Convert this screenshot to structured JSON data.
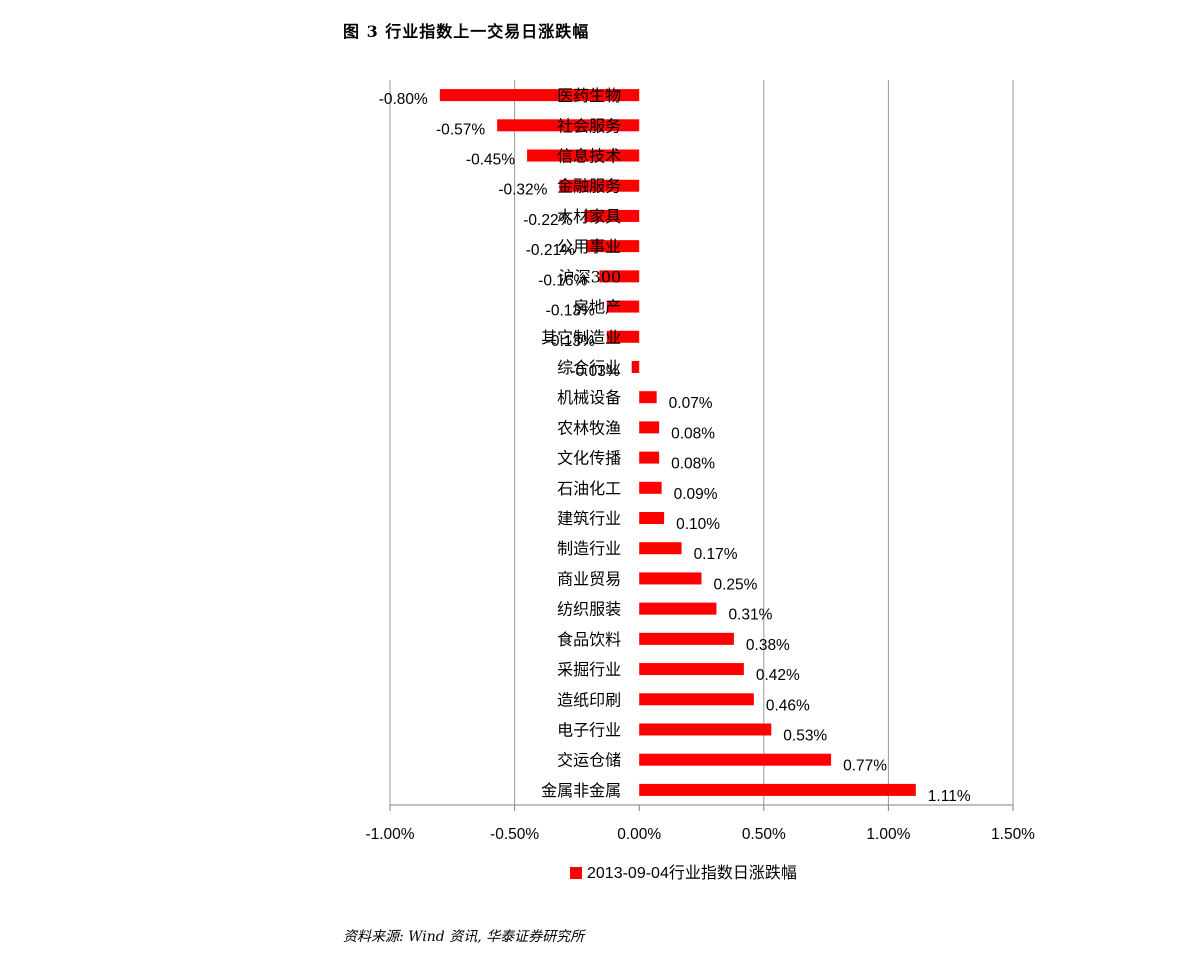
{
  "figure_title": "图 3   行业指数上一交易日涨跌幅",
  "source_note": "资料来源: Wind 资讯, 华泰证券研究所",
  "colors": {
    "bar": "#ff0000",
    "grid": "#999999",
    "axis": "#808080"
  },
  "chart_data": {
    "type": "bar",
    "orientation": "horizontal",
    "title": "",
    "xlabel": "",
    "ylabel": "",
    "xlim": [
      -0.01,
      0.015
    ],
    "x_ticks": [
      "-1.00%",
      "-0.50%",
      "0.00%",
      "0.50%",
      "1.00%",
      "1.50%"
    ],
    "x_tick_values": [
      -0.01,
      -0.005,
      0,
      0.005,
      0.01,
      0.015
    ],
    "grid": true,
    "legend_position": "bottom",
    "categories": [
      "医药生物",
      "社会服务",
      "信息技术",
      "金融服务",
      "木材家具",
      "公用事业",
      "沪深300",
      "房地产",
      "其它制造业",
      "综合行业",
      "机械设备",
      "农林牧渔",
      "文化传播",
      "石油化工",
      "建筑行业",
      "制造行业",
      "商业贸易",
      "纺织服装",
      "食品饮料",
      "采掘行业",
      "造纸印刷",
      "电子行业",
      "交运仓储",
      "金属非金属"
    ],
    "series": [
      {
        "name": "2013-09-04行业指数日涨跌幅",
        "values": [
          -0.008,
          -0.0057,
          -0.0045,
          -0.0032,
          -0.0022,
          -0.0021,
          -0.0016,
          -0.0013,
          -0.0013,
          -0.0003,
          0.0007,
          0.0008,
          0.0008,
          0.0009,
          0.001,
          0.0017,
          0.0025,
          0.0031,
          0.0038,
          0.0042,
          0.0046,
          0.0053,
          0.0077,
          0.0111
        ],
        "labels": [
          "-0.80%",
          "-0.57%",
          "-0.45%",
          "-0.32%",
          "-0.22%",
          "-0.21%",
          "-0.16%",
          "-0.13%",
          "-0.13%",
          "-0.03%",
          "0.07%",
          "0.08%",
          "0.08%",
          "0.09%",
          "0.10%",
          "0.17%",
          "0.25%",
          "0.31%",
          "0.38%",
          "0.42%",
          "0.46%",
          "0.53%",
          "0.77%",
          "1.11%"
        ]
      }
    ]
  }
}
